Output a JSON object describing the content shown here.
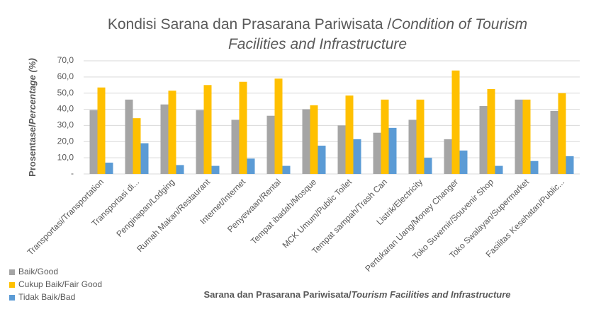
{
  "chart_data": {
    "type": "bar",
    "title": [
      "Kondisi Sarana dan Prasarana Pariwisata /",
      "Condition of Tourism",
      "Facilities and Infrastructure"
    ],
    "ylabel": [
      "Prosentase/",
      "Percentage (%)"
    ],
    "xlabel": [
      "Sarana dan Prasarana Pariwisata/",
      "Tourism Facilities and Infrastructure"
    ],
    "categories": [
      "Transportasi/Transportation",
      "Transportasi di...",
      "Penginapan/Lodging",
      "Rumah Makan/Restaurant",
      "Internet/Internet",
      "Penyewaan/Rental",
      "Tempat ibadah/Mosque",
      "MCK Umum/Public Toilet",
      "Tempat sampah/Trash Can",
      "Listrik/Electricity",
      "Pertukaran Uang/Money Changer",
      "Toko Suvernir/Souvenir Shop",
      "Toko Swalayan/Supermarket",
      "Fasilitas Kesehatan/Public..."
    ],
    "series": [
      {
        "name": "Baik/Good",
        "color": "#a5a5a5",
        "values": [
          39.5,
          46,
          43,
          39.5,
          33.5,
          36,
          40,
          30,
          25.5,
          33.5,
          21.5,
          42,
          46,
          39
        ]
      },
      {
        "name": "Cukup Baik/Fair Good",
        "color": "#ffc000",
        "values": [
          53.5,
          34.5,
          51.5,
          55,
          57,
          59,
          42.5,
          48.5,
          46,
          46,
          64,
          52.5,
          46,
          50
        ]
      },
      {
        "name": "Tidak Baik/Bad",
        "color": "#5b9bd5",
        "values": [
          7,
          19,
          5.5,
          5,
          9.5,
          5,
          17.5,
          21.5,
          28.5,
          10,
          14.5,
          5,
          8,
          11
        ]
      }
    ],
    "ylim": [
      0,
      70
    ],
    "yticks": [
      {
        "value": 0,
        "label": "-"
      },
      {
        "value": 10,
        "label": "10,0"
      },
      {
        "value": 20,
        "label": "20,0"
      },
      {
        "value": 30,
        "label": "30,0"
      },
      {
        "value": 40,
        "label": "40,0"
      },
      {
        "value": 50,
        "label": "50,0"
      },
      {
        "value": 60,
        "label": "60,0"
      },
      {
        "value": 70,
        "label": "70,0"
      }
    ],
    "grid": true,
    "legend": "bottom-left"
  }
}
